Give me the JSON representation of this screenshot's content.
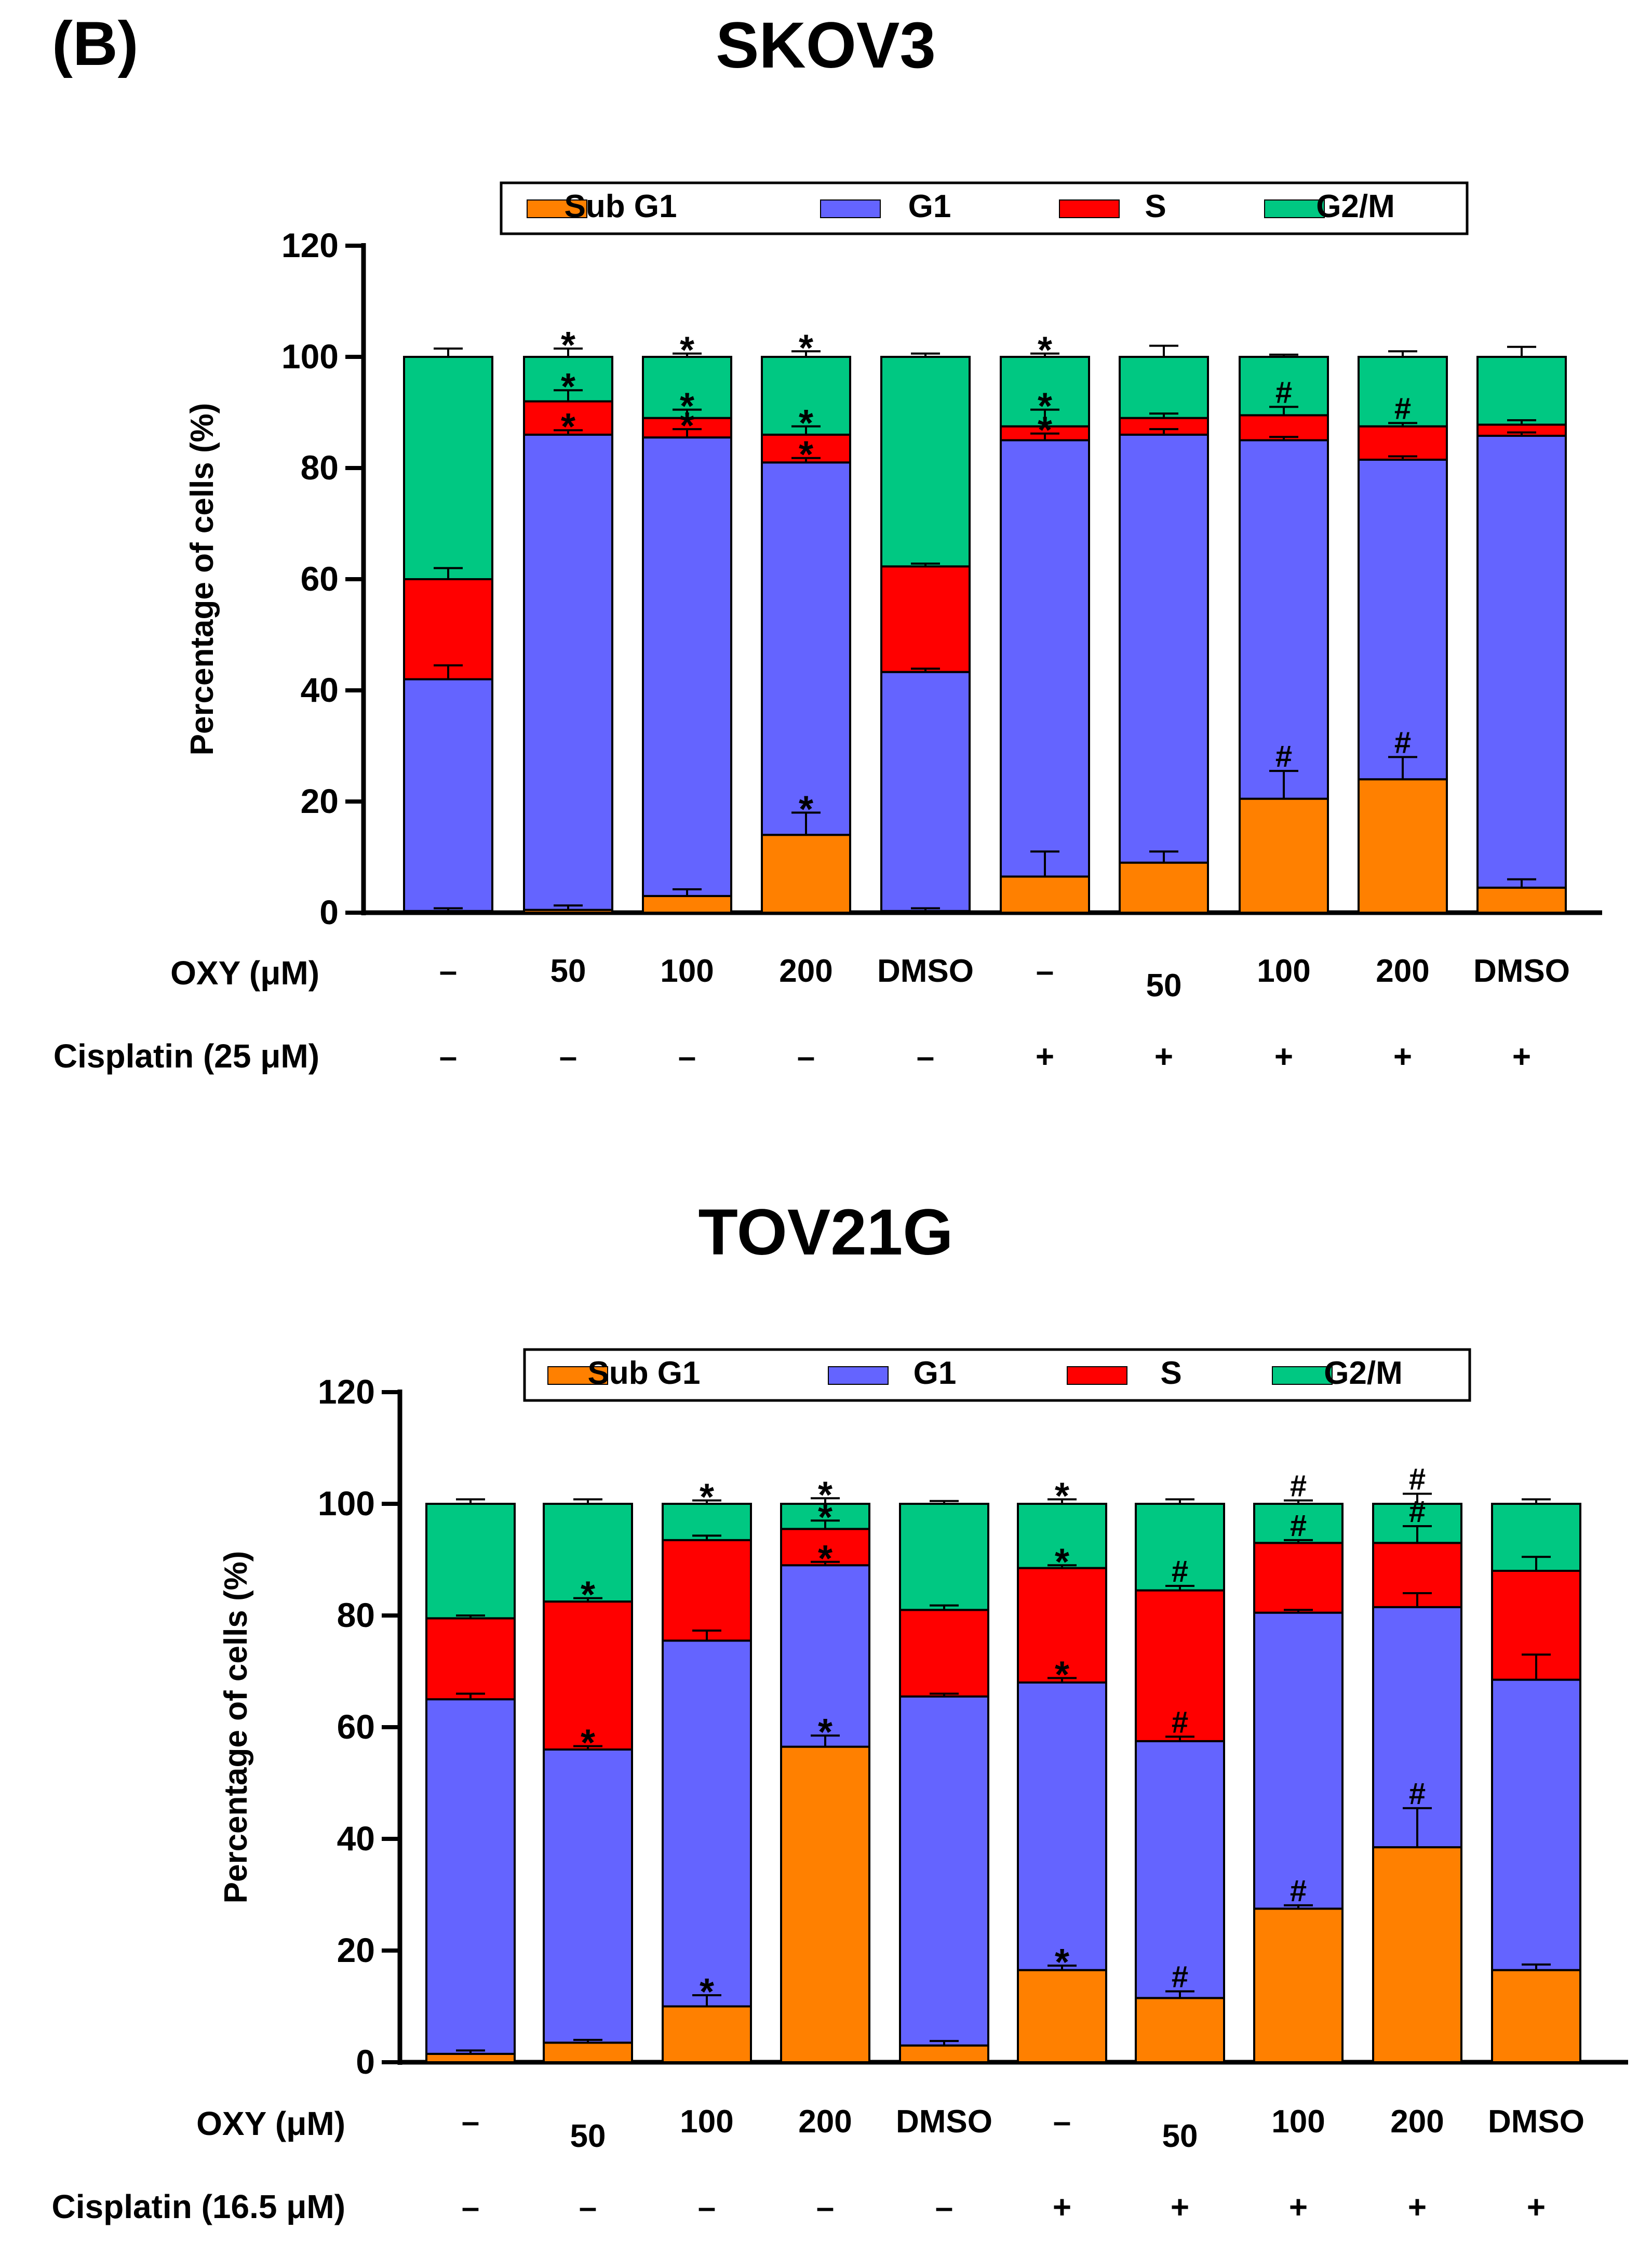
{
  "panel_label": "(B)",
  "chart_data": [
    {
      "type": "bar",
      "stacked": true,
      "title": "SKOV3",
      "xlabel": "",
      "ylabel": "Percentage of cells (%)",
      "ylim": [
        0,
        120
      ],
      "yticks": [
        0,
        20,
        40,
        60,
        80,
        100,
        120
      ],
      "legend_position": "top",
      "row_labels": [
        "OXY (μM)",
        "Cisplatin (25 μM)"
      ],
      "categories_oxy": [
        "–",
        "50",
        "100",
        "200",
        "DMSO",
        "–",
        "50",
        "100",
        "200",
        "DMSO"
      ],
      "categories_cisplatin": [
        "–",
        "–",
        "–",
        "–",
        "–",
        "+",
        "+",
        "+",
        "+",
        "+"
      ],
      "series": [
        {
          "name": "Sub G1",
          "color": "#FF8000",
          "values": [
            0.3,
            0.5,
            3,
            14,
            0.3,
            6.5,
            9,
            20.5,
            24,
            4.5
          ],
          "errors": [
            0.5,
            0.8,
            1.2,
            4,
            0.5,
            4.5,
            2,
            5,
            4,
            1.5
          ]
        },
        {
          "name": "G1",
          "color": "#6464FF",
          "values": [
            41.7,
            85.5,
            82.5,
            67,
            43,
            78.5,
            77,
            64.5,
            57.5,
            81.3
          ],
          "errors": [
            2.5,
            0.8,
            1.5,
            0.8,
            0.6,
            1.2,
            1,
            0.6,
            0.6,
            0.6
          ]
        },
        {
          "name": "S",
          "color": "#FF0000",
          "values": [
            18,
            6,
            3.5,
            5,
            19,
            2.5,
            3,
            4.5,
            6,
            2
          ],
          "errors": [
            2,
            2,
            1.5,
            1.5,
            0.5,
            3,
            0.8,
            1.5,
            0.6,
            0.8
          ]
        },
        {
          "name": "G2/M",
          "color": "#00C882",
          "values": [
            40,
            8,
            11,
            14,
            37.7,
            12.5,
            11,
            10.5,
            12.5,
            12.2
          ],
          "errors": [
            1.5,
            1.5,
            0.6,
            1,
            0.6,
            0.6,
            2,
            0.4,
            1,
            1.8
          ]
        }
      ],
      "annotations": [
        {
          "bar": 1,
          "series": 3,
          "mark": "*"
        },
        {
          "bar": 1,
          "series": 2,
          "mark": "*"
        },
        {
          "bar": 1,
          "series": 1,
          "mark": "*"
        },
        {
          "bar": 2,
          "series": 3,
          "mark": "*"
        },
        {
          "bar": 2,
          "series": 2,
          "mark": "*"
        },
        {
          "bar": 2,
          "series": 1,
          "mark": "*"
        },
        {
          "bar": 3,
          "series": 3,
          "mark": "*"
        },
        {
          "bar": 3,
          "series": 2,
          "mark": "*"
        },
        {
          "bar": 3,
          "series": 1,
          "mark": "*"
        },
        {
          "bar": 3,
          "series": 0,
          "mark": "*"
        },
        {
          "bar": 5,
          "series": 3,
          "mark": "*"
        },
        {
          "bar": 5,
          "series": 2,
          "mark": "*"
        },
        {
          "bar": 5,
          "series": 1,
          "mark": "*"
        },
        {
          "bar": 7,
          "series": 2,
          "mark": "#"
        },
        {
          "bar": 7,
          "series": 0,
          "mark": "#"
        },
        {
          "bar": 8,
          "series": 2,
          "mark": "#"
        },
        {
          "bar": 8,
          "series": 0,
          "mark": "#"
        }
      ]
    },
    {
      "type": "bar",
      "stacked": true,
      "title": "TOV21G",
      "xlabel": "",
      "ylabel": "Percentage of cells (%)",
      "ylim": [
        0,
        120
      ],
      "yticks": [
        0,
        20,
        40,
        60,
        80,
        100,
        120
      ],
      "legend_position": "top",
      "row_labels": [
        "OXY (μM)",
        "Cisplatin (16.5 μM)"
      ],
      "categories_oxy": [
        "–",
        "50",
        "100",
        "200",
        "DMSO",
        "–",
        "50",
        "100",
        "200",
        "DMSO"
      ],
      "categories_cisplatin": [
        "–",
        "–",
        "–",
        "–",
        "–",
        "+",
        "+",
        "+",
        "+",
        "+"
      ],
      "series": [
        {
          "name": "Sub G1",
          "color": "#FF8000",
          "values": [
            1.5,
            3.5,
            10,
            56.5,
            3,
            16.5,
            11.5,
            27.5,
            38.5,
            16.5
          ],
          "errors": [
            0.6,
            0.5,
            2,
            2,
            0.8,
            0.8,
            1.2,
            0.6,
            7,
            1
          ]
        },
        {
          "name": "G1",
          "color": "#6464FF",
          "values": [
            63.5,
            52.5,
            65.5,
            32.5,
            62.5,
            51.5,
            46,
            53,
            43,
            52
          ],
          "errors": [
            1,
            0.6,
            1.8,
            0.6,
            0.5,
            0.8,
            0.8,
            0.5,
            2.5,
            4.5
          ]
        },
        {
          "name": "S",
          "color": "#FF0000",
          "values": [
            14.5,
            26.5,
            18,
            6.5,
            15.5,
            20.5,
            27,
            12.5,
            11.5,
            19.5
          ],
          "errors": [
            0.5,
            0.6,
            0.8,
            1.5,
            0.8,
            0.5,
            0.8,
            0.5,
            3,
            2.5
          ]
        },
        {
          "name": "G2/M",
          "color": "#00C882",
          "values": [
            20.5,
            17.5,
            6.5,
            4.5,
            19,
            11.5,
            15.5,
            7,
            7,
            12
          ],
          "errors": [
            0.8,
            0.8,
            0.6,
            1,
            0.5,
            0.8,
            0.8,
            0.6,
            1.8,
            0.8
          ]
        }
      ],
      "annotations": [
        {
          "bar": 1,
          "series": 2,
          "mark": "*"
        },
        {
          "bar": 1,
          "series": 1,
          "mark": "*"
        },
        {
          "bar": 2,
          "series": 3,
          "mark": "*"
        },
        {
          "bar": 2,
          "series": 0,
          "mark": "*"
        },
        {
          "bar": 3,
          "series": 3,
          "mark": "*"
        },
        {
          "bar": 3,
          "series": 2,
          "mark": "*"
        },
        {
          "bar": 3,
          "series": 1,
          "mark": "*"
        },
        {
          "bar": 3,
          "series": 0,
          "mark": "*"
        },
        {
          "bar": 5,
          "series": 3,
          "mark": "*"
        },
        {
          "bar": 5,
          "series": 2,
          "mark": "*"
        },
        {
          "bar": 5,
          "series": 1,
          "mark": "*"
        },
        {
          "bar": 5,
          "series": 0,
          "mark": "*"
        },
        {
          "bar": 6,
          "series": 2,
          "mark": "#"
        },
        {
          "bar": 6,
          "series": 1,
          "mark": "#"
        },
        {
          "bar": 6,
          "series": 0,
          "mark": "#"
        },
        {
          "bar": 7,
          "series": 3,
          "mark": "#"
        },
        {
          "bar": 7,
          "series": 2,
          "mark": "#"
        },
        {
          "bar": 7,
          "series": 0,
          "mark": "#"
        },
        {
          "bar": 8,
          "series": 3,
          "mark": "#"
        },
        {
          "bar": 8,
          "series": 2,
          "mark": "#"
        },
        {
          "bar": 8,
          "series": 0,
          "mark": "#"
        }
      ]
    }
  ]
}
